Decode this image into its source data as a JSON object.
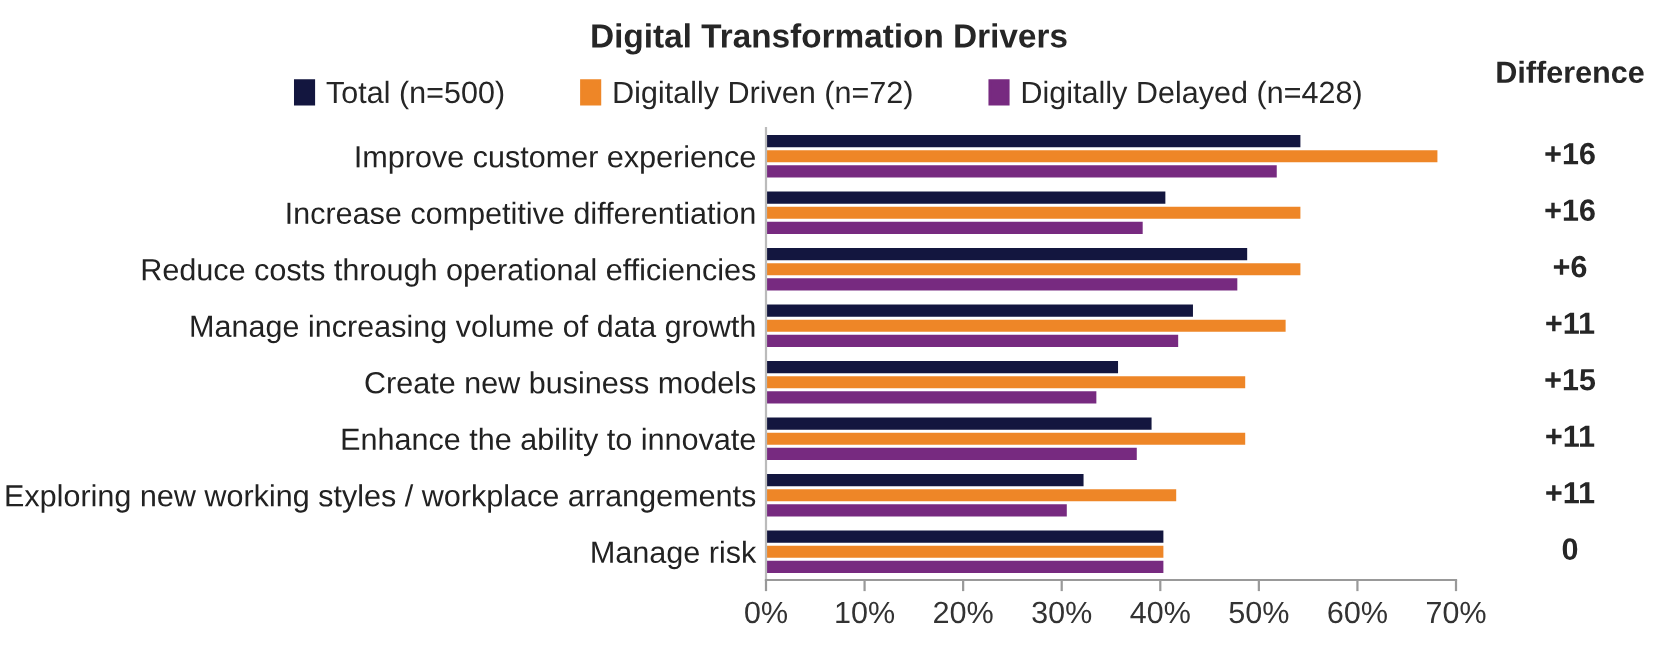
{
  "chart_data": {
    "type": "bar",
    "orientation": "horizontal",
    "title": "Digital Transformation Drivers",
    "categories": [
      "Improve customer experience",
      "Increase competitive differentiation",
      "Reduce costs through operational efficiencies",
      "Manage increasing volume of data growth",
      "Create new business models",
      "Enhance the ability to innovate",
      "Exploring new working styles / workplace arrangements",
      "Manage risk"
    ],
    "series": [
      {
        "name": "Total (n=500)",
        "color": "#13163f",
        "values": [
          54.3,
          40.6,
          48.9,
          43.4,
          35.8,
          39.2,
          32.3,
          40.4
        ]
      },
      {
        "name": "Digitally Driven (n=72)",
        "color": "#ee8627",
        "values": [
          68.2,
          54.3,
          54.3,
          52.8,
          48.7,
          48.7,
          41.7,
          40.4
        ]
      },
      {
        "name": "Digitally Delayed (n=428)",
        "color": "#772a80",
        "values": [
          51.9,
          38.3,
          47.9,
          41.9,
          33.6,
          37.7,
          30.6,
          40.4
        ]
      }
    ],
    "xlim": [
      0,
      70
    ],
    "xticks": [
      {
        "value": 0,
        "label": "0%"
      },
      {
        "value": 10,
        "label": "10%"
      },
      {
        "value": 20,
        "label": "20%"
      },
      {
        "value": 30,
        "label": "30%"
      },
      {
        "value": 40,
        "label": "40%"
      },
      {
        "value": 50,
        "label": "50%"
      },
      {
        "value": 60,
        "label": "60%"
      },
      {
        "value": 70,
        "label": "70%"
      }
    ],
    "annotations": [
      "Difference",
      "+16",
      "+16",
      "+6",
      "+11",
      "+15",
      "+11",
      "+11",
      "0"
    ],
    "legend": "top",
    "grid": false
  }
}
